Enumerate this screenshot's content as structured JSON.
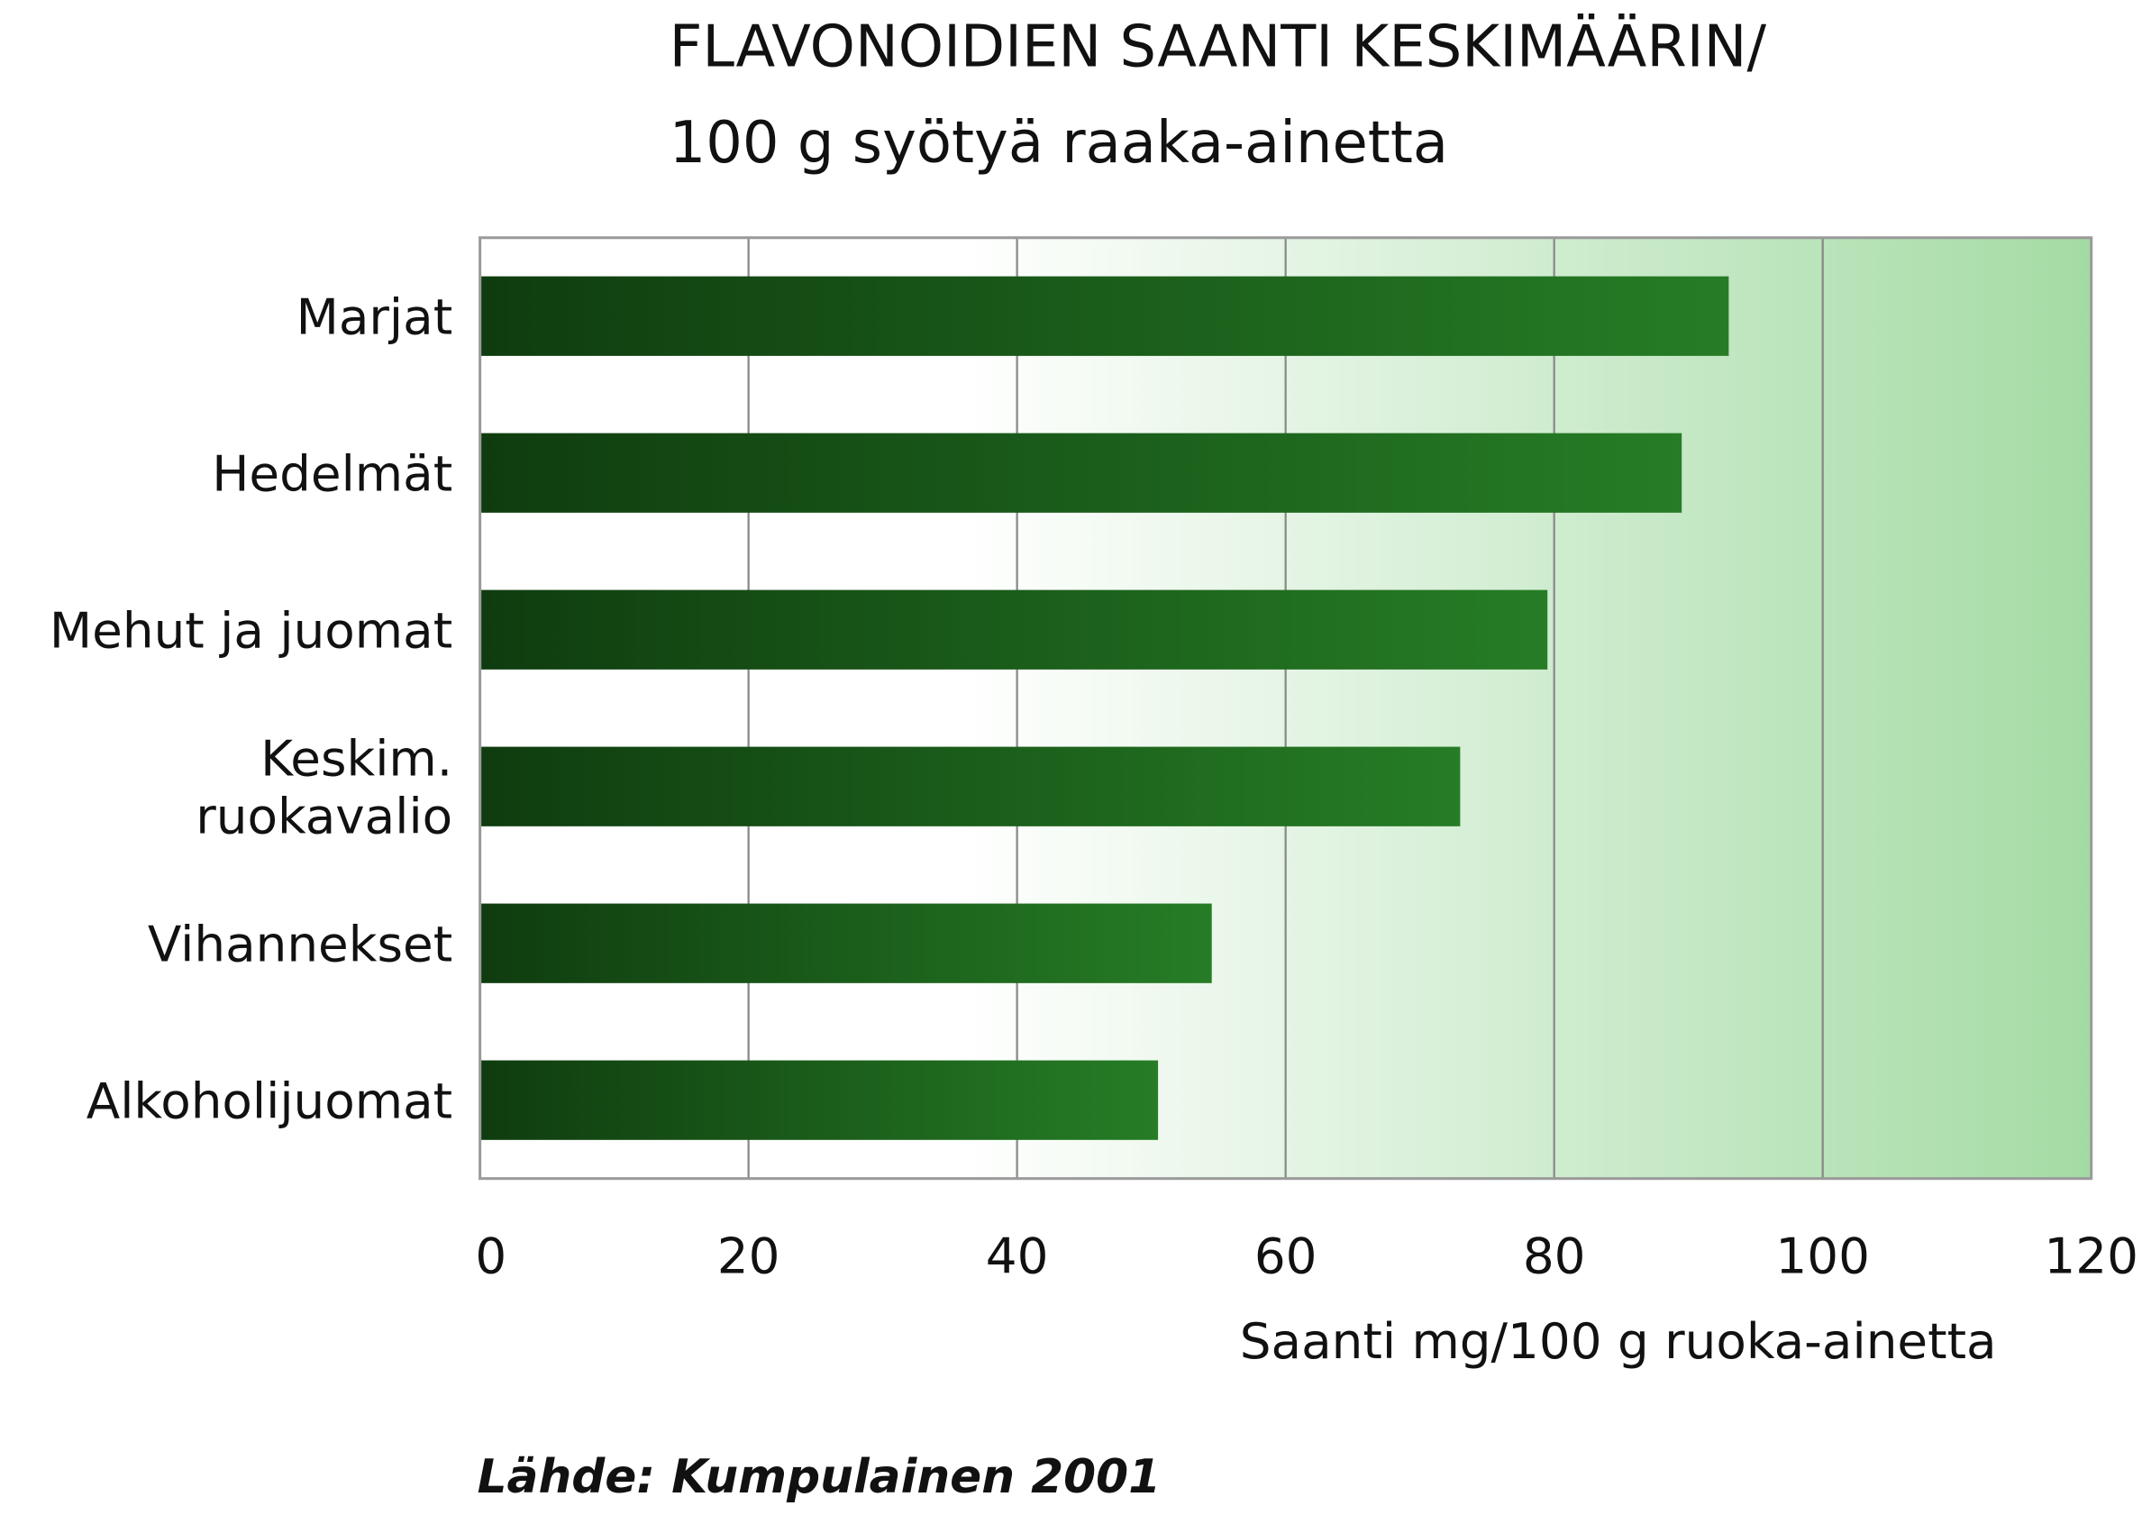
{
  "chart_data": {
    "type": "bar",
    "orientation": "horizontal",
    "title_line1": "FLAVONOIDIEN SAANTI KESKIMÄÄRIN/",
    "title_line2": "100 g syötyä raaka-ainetta",
    "xlabel": "Saanti mg/100 g ruoka-ainetta",
    "source": "Lähde: Kumpulainen 2001",
    "categories": [
      [
        "Marjat"
      ],
      [
        "Hedelmät"
      ],
      [
        "Mehut ja juomat"
      ],
      [
        "Keskim.",
        "ruokavalio"
      ],
      [
        "Vihannekset"
      ],
      [
        "Alkoholijuomat"
      ]
    ],
    "values": [
      93,
      89.5,
      79.5,
      73,
      54.5,
      50.5
    ],
    "xlim": [
      0,
      120
    ],
    "xticks": [
      "0",
      "20",
      "40",
      "60",
      "80",
      "100",
      "120"
    ],
    "grid": true,
    "colors": {
      "bar_dark": "#0f3c0f",
      "bar_light": "#267d26",
      "bg_light": "#ffffff",
      "bg_dark": "#a4dba4",
      "grid": "#8a8a8a",
      "frame": "#9a9a9a"
    }
  }
}
